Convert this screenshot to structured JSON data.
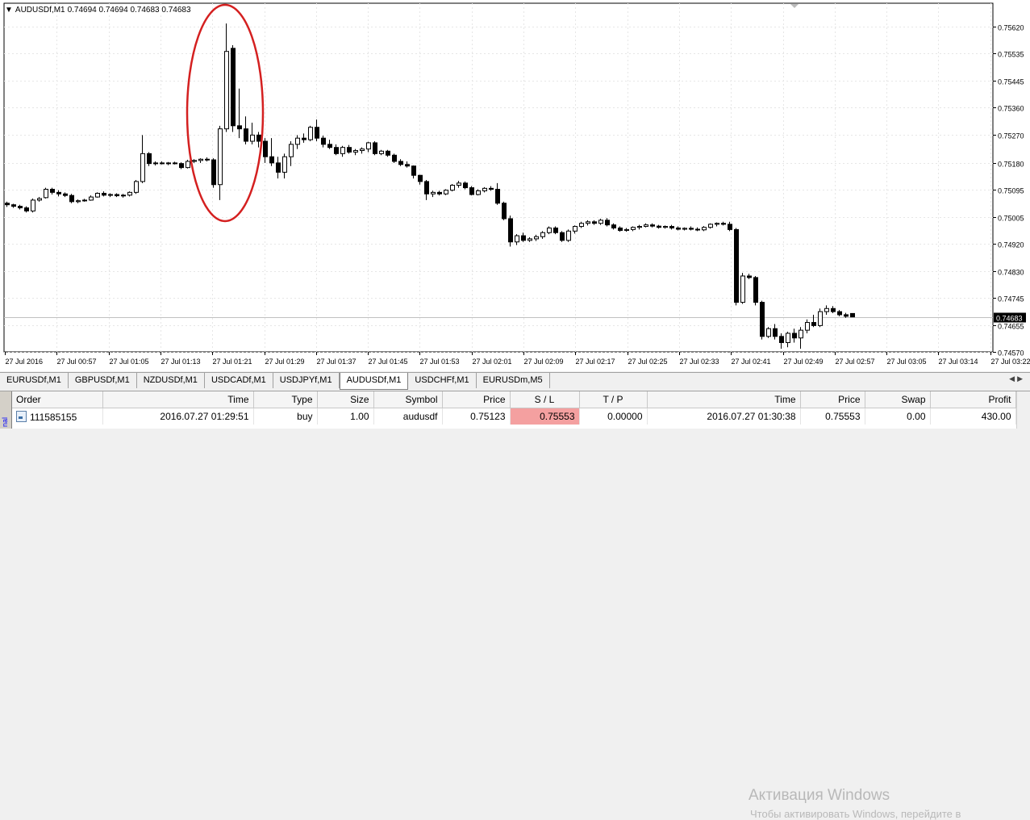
{
  "chart": {
    "symbol_label": "AUDUSDf,M1",
    "ohlc_label": "0.74694 0.74694 0.74683 0.74683",
    "current_price": "0.74683",
    "colors": {
      "bull": "#ffffff",
      "bear": "#000000",
      "grid": "#e6e6e6",
      "marker": "#d42020",
      "price_line": "#c0c0c0"
    }
  },
  "chart_data": {
    "type": "candlestick",
    "y_ticks": [
      "0.75620",
      "0.75535",
      "0.75445",
      "0.75360",
      "0.75270",
      "0.75180",
      "0.75095",
      "0.75005",
      "0.74920",
      "0.74830",
      "0.74745",
      "0.74655",
      "0.74570"
    ],
    "ylim": [
      0.7457,
      0.7562
    ],
    "x_ticks": [
      "27 Jul 2016",
      "27 Jul 00:57",
      "27 Jul 01:05",
      "27 Jul 01:13",
      "27 Jul 01:21",
      "27 Jul 01:29",
      "27 Jul 01:37",
      "27 Jul 01:45",
      "27 Jul 01:53",
      "27 Jul 02:01",
      "27 Jul 02:09",
      "27 Jul 02:17",
      "27 Jul 02:25",
      "27 Jul 02:33",
      "27 Jul 02:41",
      "27 Jul 02:49",
      "27 Jul 02:57",
      "27 Jul 03:05",
      "27 Jul 03:14",
      "27 Jul 03:22"
    ],
    "grid": true,
    "candles": [
      {
        "o": 0.7505,
        "h": 0.75055,
        "l": 0.75038,
        "c": 0.75045
      },
      {
        "o": 0.75045,
        "h": 0.75048,
        "l": 0.75035,
        "c": 0.7504
      },
      {
        "o": 0.7504,
        "h": 0.75045,
        "l": 0.7503,
        "c": 0.75035
      },
      {
        "o": 0.75035,
        "h": 0.7504,
        "l": 0.7502,
        "c": 0.75025
      },
      {
        "o": 0.75025,
        "h": 0.75065,
        "l": 0.7502,
        "c": 0.7506
      },
      {
        "o": 0.7506,
        "h": 0.7507,
        "l": 0.75055,
        "c": 0.75065
      },
      {
        "o": 0.75068,
        "h": 0.751,
        "l": 0.75065,
        "c": 0.75095
      },
      {
        "o": 0.75095,
        "h": 0.751,
        "l": 0.75078,
        "c": 0.75085
      },
      {
        "o": 0.75085,
        "h": 0.75092,
        "l": 0.75072,
        "c": 0.7508
      },
      {
        "o": 0.7508,
        "h": 0.75085,
        "l": 0.7507,
        "c": 0.75075
      },
      {
        "o": 0.75075,
        "h": 0.7508,
        "l": 0.7505,
        "c": 0.75055
      },
      {
        "o": 0.75055,
        "h": 0.75062,
        "l": 0.7505,
        "c": 0.75058
      },
      {
        "o": 0.75058,
        "h": 0.75064,
        "l": 0.75055,
        "c": 0.7506
      },
      {
        "o": 0.7506,
        "h": 0.75075,
        "l": 0.75058,
        "c": 0.7507
      },
      {
        "o": 0.7507,
        "h": 0.75085,
        "l": 0.75068,
        "c": 0.75082
      },
      {
        "o": 0.75082,
        "h": 0.75088,
        "l": 0.75072,
        "c": 0.75076
      },
      {
        "o": 0.75076,
        "h": 0.75082,
        "l": 0.7507,
        "c": 0.75078
      },
      {
        "o": 0.75078,
        "h": 0.75082,
        "l": 0.7507,
        "c": 0.75074
      },
      {
        "o": 0.75074,
        "h": 0.7508,
        "l": 0.75068,
        "c": 0.75076
      },
      {
        "o": 0.75076,
        "h": 0.75088,
        "l": 0.75072,
        "c": 0.75085
      },
      {
        "o": 0.75085,
        "h": 0.75125,
        "l": 0.7508,
        "c": 0.7512
      },
      {
        "o": 0.7512,
        "h": 0.7527,
        "l": 0.75115,
        "c": 0.7521
      },
      {
        "o": 0.7521,
        "h": 0.75215,
        "l": 0.7517,
        "c": 0.75178
      },
      {
        "o": 0.75178,
        "h": 0.75185,
        "l": 0.75172,
        "c": 0.7518
      },
      {
        "o": 0.7518,
        "h": 0.75185,
        "l": 0.75175,
        "c": 0.75178
      },
      {
        "o": 0.75178,
        "h": 0.75183,
        "l": 0.75173,
        "c": 0.7518
      },
      {
        "o": 0.7518,
        "h": 0.75184,
        "l": 0.75175,
        "c": 0.75178
      },
      {
        "o": 0.75178,
        "h": 0.75182,
        "l": 0.7516,
        "c": 0.75165
      },
      {
        "o": 0.75165,
        "h": 0.7519,
        "l": 0.75162,
        "c": 0.75185
      },
      {
        "o": 0.75185,
        "h": 0.75192,
        "l": 0.7518,
        "c": 0.75188
      },
      {
        "o": 0.75188,
        "h": 0.75195,
        "l": 0.7518,
        "c": 0.75192
      },
      {
        "o": 0.75192,
        "h": 0.75198,
        "l": 0.75185,
        "c": 0.7519
      },
      {
        "o": 0.7519,
        "h": 0.75195,
        "l": 0.751,
        "c": 0.7511
      },
      {
        "o": 0.7511,
        "h": 0.753,
        "l": 0.7506,
        "c": 0.7529
      },
      {
        "o": 0.7529,
        "h": 0.7563,
        "l": 0.7528,
        "c": 0.7554
      },
      {
        "o": 0.7555,
        "h": 0.7556,
        "l": 0.7528,
        "c": 0.753
      },
      {
        "o": 0.753,
        "h": 0.7542,
        "l": 0.7526,
        "c": 0.7529
      },
      {
        "o": 0.7529,
        "h": 0.7533,
        "l": 0.7524,
        "c": 0.7525
      },
      {
        "o": 0.7525,
        "h": 0.7531,
        "l": 0.7524,
        "c": 0.7527
      },
      {
        "o": 0.7527,
        "h": 0.7528,
        "l": 0.7523,
        "c": 0.7525
      },
      {
        "o": 0.7525,
        "h": 0.7526,
        "l": 0.7518,
        "c": 0.752
      },
      {
        "o": 0.752,
        "h": 0.7526,
        "l": 0.7517,
        "c": 0.7518
      },
      {
        "o": 0.7518,
        "h": 0.752,
        "l": 0.7513,
        "c": 0.7515
      },
      {
        "o": 0.7515,
        "h": 0.7521,
        "l": 0.7513,
        "c": 0.752
      },
      {
        "o": 0.752,
        "h": 0.7525,
        "l": 0.7517,
        "c": 0.7524
      },
      {
        "o": 0.7524,
        "h": 0.7527,
        "l": 0.75225,
        "c": 0.7526
      },
      {
        "o": 0.7526,
        "h": 0.75275,
        "l": 0.75245,
        "c": 0.75255
      },
      {
        "o": 0.75255,
        "h": 0.753,
        "l": 0.7525,
        "c": 0.75295
      },
      {
        "o": 0.75295,
        "h": 0.7532,
        "l": 0.7525,
        "c": 0.7526
      },
      {
        "o": 0.7526,
        "h": 0.75268,
        "l": 0.7523,
        "c": 0.7524
      },
      {
        "o": 0.7524,
        "h": 0.75255,
        "l": 0.75225,
        "c": 0.7523
      },
      {
        "o": 0.7523,
        "h": 0.7524,
        "l": 0.75205,
        "c": 0.7521
      },
      {
        "o": 0.7521,
        "h": 0.75235,
        "l": 0.752,
        "c": 0.7523
      },
      {
        "o": 0.7523,
        "h": 0.75238,
        "l": 0.7521,
        "c": 0.75215
      },
      {
        "o": 0.75215,
        "h": 0.75225,
        "l": 0.75205,
        "c": 0.7522
      },
      {
        "o": 0.7522,
        "h": 0.7523,
        "l": 0.7521,
        "c": 0.75225
      },
      {
        "o": 0.75225,
        "h": 0.75248,
        "l": 0.75215,
        "c": 0.75245
      },
      {
        "o": 0.75245,
        "h": 0.7525,
        "l": 0.75205,
        "c": 0.7521
      },
      {
        "o": 0.7521,
        "h": 0.75222,
        "l": 0.75205,
        "c": 0.75218
      },
      {
        "o": 0.75218,
        "h": 0.75222,
        "l": 0.752,
        "c": 0.75205
      },
      {
        "o": 0.75205,
        "h": 0.7521,
        "l": 0.7518,
        "c": 0.75185
      },
      {
        "o": 0.75185,
        "h": 0.75192,
        "l": 0.7517,
        "c": 0.75175
      },
      {
        "o": 0.75175,
        "h": 0.75185,
        "l": 0.75165,
        "c": 0.7517
      },
      {
        "o": 0.7517,
        "h": 0.75172,
        "l": 0.7513,
        "c": 0.7514
      },
      {
        "o": 0.7514,
        "h": 0.75142,
        "l": 0.7511,
        "c": 0.7512
      },
      {
        "o": 0.7512,
        "h": 0.75125,
        "l": 0.7506,
        "c": 0.7508
      },
      {
        "o": 0.7508,
        "h": 0.7509,
        "l": 0.7507,
        "c": 0.75085
      },
      {
        "o": 0.75085,
        "h": 0.7509,
        "l": 0.75075,
        "c": 0.7508
      },
      {
        "o": 0.7508,
        "h": 0.75095,
        "l": 0.75076,
        "c": 0.75092
      },
      {
        "o": 0.75092,
        "h": 0.75112,
        "l": 0.75088,
        "c": 0.75108
      },
      {
        "o": 0.75108,
        "h": 0.75122,
        "l": 0.751,
        "c": 0.75115
      },
      {
        "o": 0.75115,
        "h": 0.7512,
        "l": 0.75095,
        "c": 0.751
      },
      {
        "o": 0.751,
        "h": 0.75105,
        "l": 0.75075,
        "c": 0.75078
      },
      {
        "o": 0.75078,
        "h": 0.75095,
        "l": 0.75075,
        "c": 0.7509
      },
      {
        "o": 0.7509,
        "h": 0.75102,
        "l": 0.75085,
        "c": 0.75098
      },
      {
        "o": 0.75098,
        "h": 0.75105,
        "l": 0.7509,
        "c": 0.75095
      },
      {
        "o": 0.75095,
        "h": 0.75115,
        "l": 0.75045,
        "c": 0.7505
      },
      {
        "o": 0.7505,
        "h": 0.75055,
        "l": 0.74995,
        "c": 0.75
      },
      {
        "o": 0.75,
        "h": 0.7501,
        "l": 0.7491,
        "c": 0.74925
      },
      {
        "o": 0.74925,
        "h": 0.7495,
        "l": 0.74915,
        "c": 0.74945
      },
      {
        "o": 0.74945,
        "h": 0.74955,
        "l": 0.74925,
        "c": 0.7493
      },
      {
        "o": 0.7493,
        "h": 0.7494,
        "l": 0.74925,
        "c": 0.74935
      },
      {
        "o": 0.74935,
        "h": 0.74948,
        "l": 0.74928,
        "c": 0.74942
      },
      {
        "o": 0.74942,
        "h": 0.7496,
        "l": 0.74935,
        "c": 0.74955
      },
      {
        "o": 0.74955,
        "h": 0.74975,
        "l": 0.7495,
        "c": 0.7497
      },
      {
        "o": 0.7497,
        "h": 0.74975,
        "l": 0.7495,
        "c": 0.74955
      },
      {
        "o": 0.74955,
        "h": 0.7496,
        "l": 0.74925,
        "c": 0.7493
      },
      {
        "o": 0.7493,
        "h": 0.74965,
        "l": 0.74925,
        "c": 0.7496
      },
      {
        "o": 0.7496,
        "h": 0.74978,
        "l": 0.74952,
        "c": 0.74975
      },
      {
        "o": 0.74975,
        "h": 0.7499,
        "l": 0.7497,
        "c": 0.74985
      },
      {
        "o": 0.74985,
        "h": 0.74995,
        "l": 0.74978,
        "c": 0.7499
      },
      {
        "o": 0.7499,
        "h": 0.74995,
        "l": 0.7498,
        "c": 0.74985
      },
      {
        "o": 0.74985,
        "h": 0.75,
        "l": 0.7498,
        "c": 0.74995
      },
      {
        "o": 0.74995,
        "h": 0.75002,
        "l": 0.74975,
        "c": 0.7498
      },
      {
        "o": 0.7498,
        "h": 0.74985,
        "l": 0.74965,
        "c": 0.7497
      },
      {
        "o": 0.7497,
        "h": 0.74975,
        "l": 0.74958,
        "c": 0.74962
      },
      {
        "o": 0.74962,
        "h": 0.7497,
        "l": 0.74958,
        "c": 0.74965
      },
      {
        "o": 0.74965,
        "h": 0.74975,
        "l": 0.7496,
        "c": 0.74972
      },
      {
        "o": 0.74972,
        "h": 0.7498,
        "l": 0.74965,
        "c": 0.74975
      },
      {
        "o": 0.74975,
        "h": 0.74985,
        "l": 0.74972,
        "c": 0.7498
      },
      {
        "o": 0.7498,
        "h": 0.74985,
        "l": 0.74972,
        "c": 0.74976
      },
      {
        "o": 0.74976,
        "h": 0.7498,
        "l": 0.74968,
        "c": 0.74972
      },
      {
        "o": 0.74972,
        "h": 0.74978,
        "l": 0.74968,
        "c": 0.74975
      },
      {
        "o": 0.74975,
        "h": 0.7498,
        "l": 0.74965,
        "c": 0.7497
      },
      {
        "o": 0.7497,
        "h": 0.74975,
        "l": 0.74962,
        "c": 0.74966
      },
      {
        "o": 0.74966,
        "h": 0.74972,
        "l": 0.74962,
        "c": 0.74969
      },
      {
        "o": 0.74969,
        "h": 0.74975,
        "l": 0.74962,
        "c": 0.74966
      },
      {
        "o": 0.74966,
        "h": 0.74972,
        "l": 0.7496,
        "c": 0.74964
      },
      {
        "o": 0.74964,
        "h": 0.74976,
        "l": 0.7496,
        "c": 0.74972
      },
      {
        "o": 0.74972,
        "h": 0.74985,
        "l": 0.74968,
        "c": 0.74982
      },
      {
        "o": 0.74982,
        "h": 0.74988,
        "l": 0.74975,
        "c": 0.74985
      },
      {
        "o": 0.74985,
        "h": 0.7499,
        "l": 0.74978,
        "c": 0.74982
      },
      {
        "o": 0.74982,
        "h": 0.7499,
        "l": 0.7496,
        "c": 0.74965
      },
      {
        "o": 0.74965,
        "h": 0.7497,
        "l": 0.7472,
        "c": 0.7473
      },
      {
        "o": 0.7473,
        "h": 0.74825,
        "l": 0.74725,
        "c": 0.74815
      },
      {
        "o": 0.74815,
        "h": 0.74822,
        "l": 0.74805,
        "c": 0.7481
      },
      {
        "o": 0.7481,
        "h": 0.74815,
        "l": 0.7472,
        "c": 0.7473
      },
      {
        "o": 0.7473,
        "h": 0.74735,
        "l": 0.7461,
        "c": 0.7462
      },
      {
        "o": 0.7462,
        "h": 0.7465,
        "l": 0.74615,
        "c": 0.74645
      },
      {
        "o": 0.74645,
        "h": 0.7466,
        "l": 0.7461,
        "c": 0.7462
      },
      {
        "o": 0.7462,
        "h": 0.7463,
        "l": 0.7458,
        "c": 0.746
      },
      {
        "o": 0.746,
        "h": 0.74635,
        "l": 0.74585,
        "c": 0.7463
      },
      {
        "o": 0.7463,
        "h": 0.74645,
        "l": 0.746,
        "c": 0.74615
      },
      {
        "o": 0.74615,
        "h": 0.7465,
        "l": 0.7458,
        "c": 0.7464
      },
      {
        "o": 0.7464,
        "h": 0.74675,
        "l": 0.7463,
        "c": 0.74665
      },
      {
        "o": 0.74665,
        "h": 0.7469,
        "l": 0.7465,
        "c": 0.74655
      },
      {
        "o": 0.74655,
        "h": 0.7471,
        "l": 0.7465,
        "c": 0.747
      },
      {
        "o": 0.747,
        "h": 0.7472,
        "l": 0.7469,
        "c": 0.7471
      },
      {
        "o": 0.7471,
        "h": 0.74718,
        "l": 0.74695,
        "c": 0.747
      },
      {
        "o": 0.747,
        "h": 0.74705,
        "l": 0.74685,
        "c": 0.7469
      },
      {
        "o": 0.7469,
        "h": 0.74696,
        "l": 0.7468,
        "c": 0.74685
      },
      {
        "o": 0.74694,
        "h": 0.74694,
        "l": 0.74683,
        "c": 0.74683
      }
    ],
    "annotation": "red ellipse around spike near 01:29"
  },
  "tabs": [
    {
      "label": "EURUSDf,M1",
      "active": false
    },
    {
      "label": "GBPUSDf,M1",
      "active": false
    },
    {
      "label": "NZDUSDf,M1",
      "active": false
    },
    {
      "label": "USDCADf,M1",
      "active": false
    },
    {
      "label": "USDJPYf,M1",
      "active": false
    },
    {
      "label": "AUDUSDf,M1",
      "active": true
    },
    {
      "label": "USDCHFf,M1",
      "active": false
    },
    {
      "label": "EURUSDm,M5",
      "active": false
    }
  ],
  "terminal": {
    "side_label": "nal",
    "headers": [
      "Order",
      "Time",
      "Type",
      "Size",
      "Symbol",
      "Price",
      "S / L",
      "T / P",
      "Time",
      "Price",
      "Swap",
      "Profit"
    ],
    "rows": [
      [
        "111585155",
        "2016.07.27 01:29:51",
        "buy",
        "1.00",
        "audusdf",
        "0.75123",
        "0.75553",
        "0.00000",
        "2016.07.27 01:30:38",
        "0.75553",
        "0.00",
        "430.00"
      ]
    ],
    "watermark_title": "Активация Windows",
    "watermark_sub": "Чтобы активировать Windows, перейдите в"
  }
}
